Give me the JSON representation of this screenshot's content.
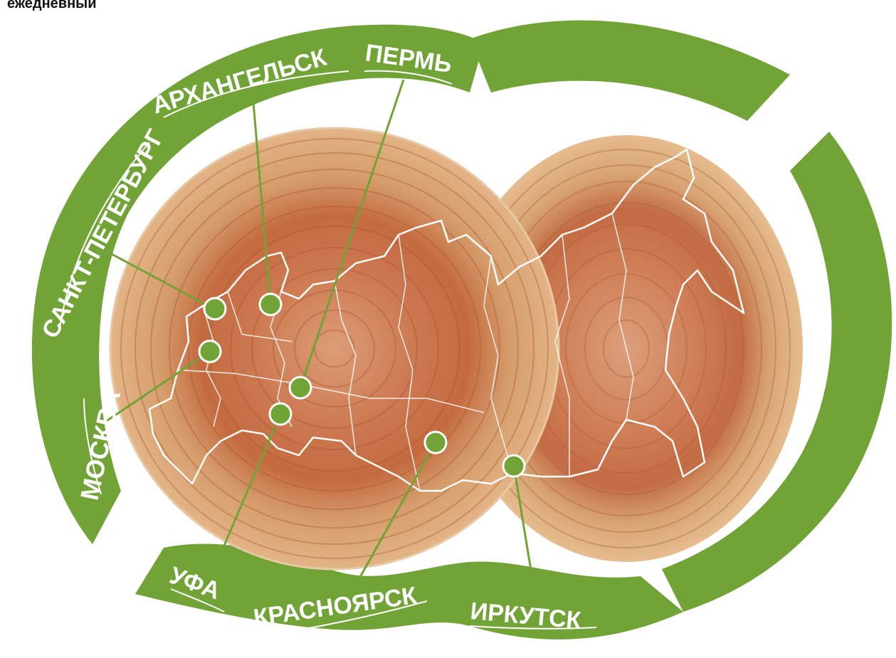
{
  "header": {
    "label": "ежедневный"
  },
  "colors": {
    "green": "#72a336",
    "wood_light": "#e2b98b",
    "wood_mid": "#d89a6a",
    "wood_dark": "#b55a32",
    "border": "#ffffff"
  },
  "cities": {
    "moscow": "МОСКВА",
    "spb": "САНКТ-ПЕТЕРБУРГ",
    "arkhangelsk": "АРХАНГЕЛЬСК",
    "perm": "ПЕРМЬ",
    "ufa": "УФА",
    "krasnoyarsk": "КРАСНОЯРСК",
    "irkutsk": "ИРКУТСК"
  }
}
